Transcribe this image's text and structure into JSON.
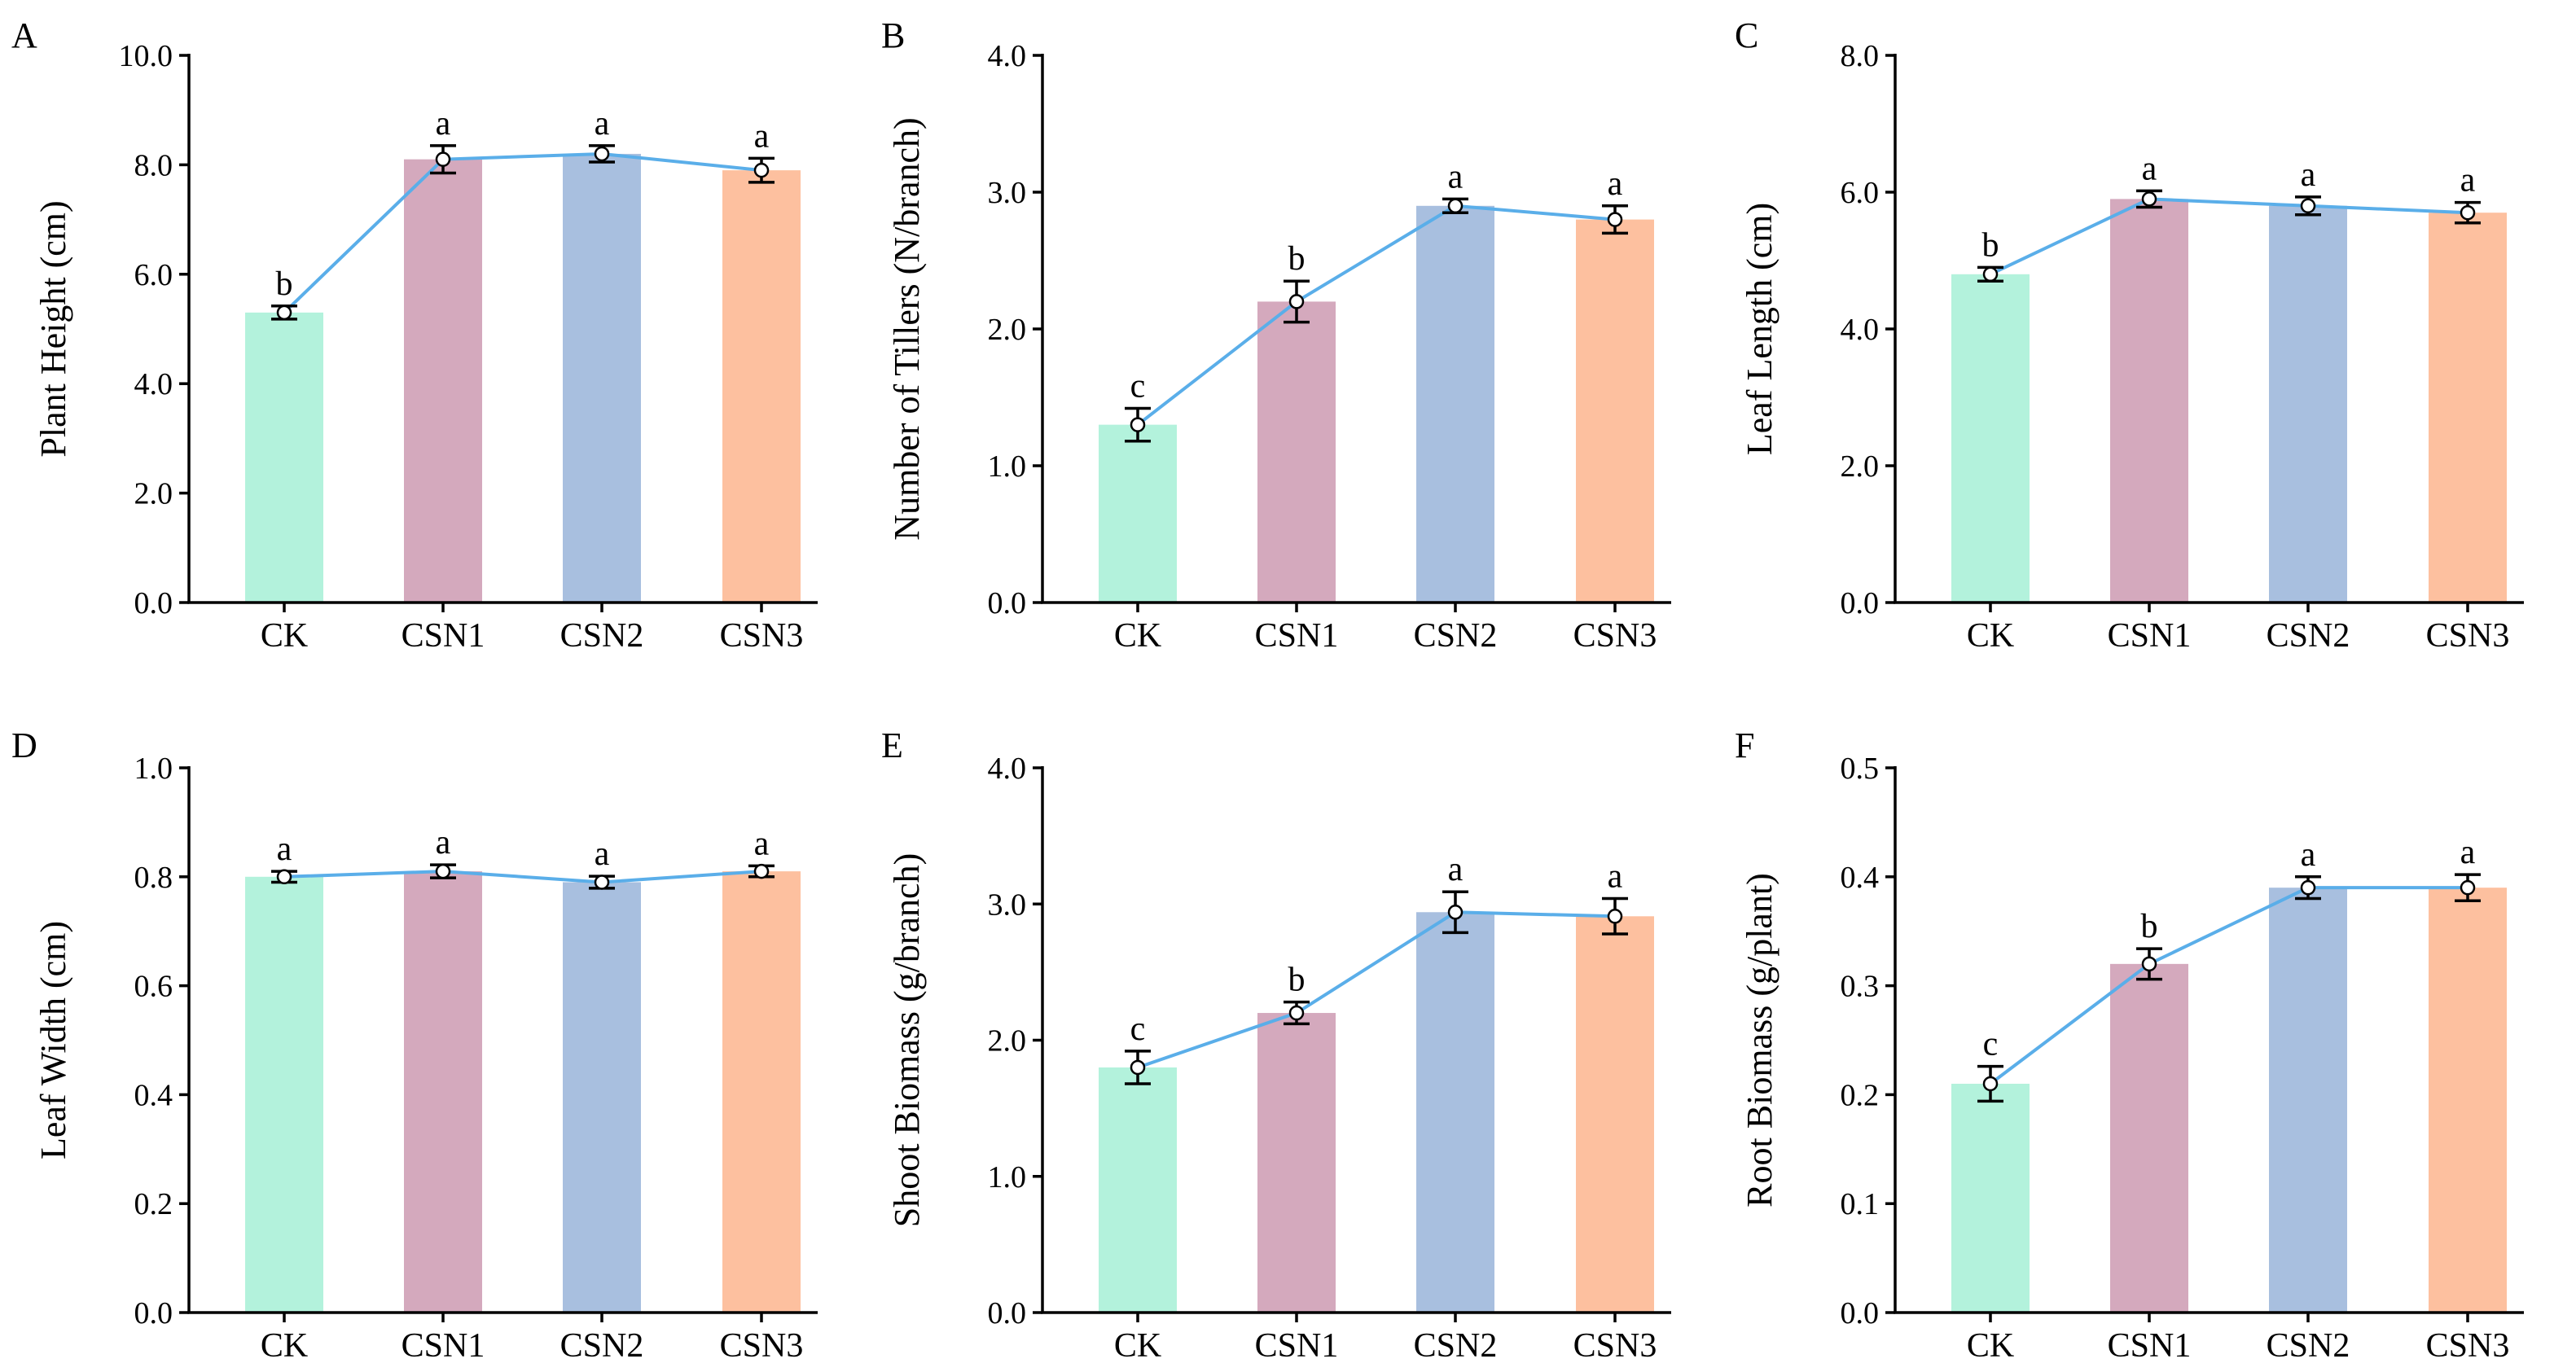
{
  "categories": [
    "CK",
    "CSN1",
    "CSN2",
    "CSN3"
  ],
  "colors": {
    "bars": [
      "#b3f2dc",
      "#d4a9bd",
      "#a8bfdf",
      "#fdc09f"
    ],
    "line": "#5aaee9",
    "axis": "#000000"
  },
  "chart_data": [
    {
      "type": "bar",
      "panel": "A",
      "title": "",
      "xlabel": "",
      "ylabel": "Plant Height (cm)",
      "ylim": [
        0,
        10
      ],
      "ticks": [
        0,
        2,
        4,
        6,
        8,
        10
      ],
      "tick_labels": [
        "0.0",
        "2.0",
        "4.0",
        "6.0",
        "8.0",
        "10.0"
      ],
      "categories": [
        "CK",
        "CSN1",
        "CSN2",
        "CSN3"
      ],
      "values": [
        5.3,
        8.1,
        8.2,
        7.9
      ],
      "errors": [
        0.12,
        0.25,
        0.15,
        0.22
      ],
      "significance": [
        "b",
        "a",
        "a",
        "a"
      ]
    },
    {
      "type": "bar",
      "panel": "B",
      "title": "",
      "xlabel": "",
      "ylabel": "Number of Tillers (N/branch)",
      "ylim": [
        0,
        4
      ],
      "ticks": [
        0,
        1,
        2,
        3,
        4
      ],
      "tick_labels": [
        "0.0",
        "1.0",
        "2.0",
        "3.0",
        "4.0"
      ],
      "categories": [
        "CK",
        "CSN1",
        "CSN2",
        "CSN3"
      ],
      "values": [
        1.3,
        2.2,
        2.9,
        2.8
      ],
      "errors": [
        0.12,
        0.15,
        0.05,
        0.1
      ],
      "significance": [
        "c",
        "b",
        "a",
        "a"
      ]
    },
    {
      "type": "bar",
      "panel": "C",
      "title": "",
      "xlabel": "",
      "ylabel": "Leaf Length (cm)",
      "ylim": [
        0,
        8
      ],
      "ticks": [
        0,
        2,
        4,
        6,
        8
      ],
      "tick_labels": [
        "0.0",
        "2.0",
        "4.0",
        "6.0",
        "8.0"
      ],
      "categories": [
        "CK",
        "CSN1",
        "CSN2",
        "CSN3"
      ],
      "values": [
        4.8,
        5.9,
        5.8,
        5.7
      ],
      "errors": [
        0.1,
        0.12,
        0.13,
        0.15
      ],
      "significance": [
        "b",
        "a",
        "a",
        "a"
      ]
    },
    {
      "type": "bar",
      "panel": "D",
      "title": "",
      "xlabel": "",
      "ylabel": "Leaf Width (cm)",
      "ylim": [
        0,
        1
      ],
      "ticks": [
        0,
        0.2,
        0.4,
        0.6,
        0.8,
        1.0
      ],
      "tick_labels": [
        "0.0",
        "0.2",
        "0.4",
        "0.6",
        "0.8",
        "1.0"
      ],
      "categories": [
        "CK",
        "CSN1",
        "CSN2",
        "CSN3"
      ],
      "values": [
        0.8,
        0.81,
        0.79,
        0.81
      ],
      "errors": [
        0.01,
        0.012,
        0.011,
        0.01
      ],
      "significance": [
        "a",
        "a",
        "a",
        "a"
      ]
    },
    {
      "type": "bar",
      "panel": "E",
      "title": "",
      "xlabel": "",
      "ylabel": "Shoot Biomass (g/branch)",
      "ylim": [
        0,
        4
      ],
      "ticks": [
        0,
        1,
        2,
        3,
        4
      ],
      "tick_labels": [
        "0.0",
        "1.0",
        "2.0",
        "3.0",
        "4.0"
      ],
      "categories": [
        "CK",
        "CSN1",
        "CSN2",
        "CSN3"
      ],
      "values": [
        1.8,
        2.2,
        2.94,
        2.91
      ],
      "errors": [
        0.12,
        0.08,
        0.15,
        0.13
      ],
      "significance": [
        "c",
        "b",
        "a",
        "a"
      ]
    },
    {
      "type": "bar",
      "panel": "F",
      "title": "",
      "xlabel": "",
      "ylabel": "Root Biomass (g/plant)",
      "ylim": [
        0,
        0.5
      ],
      "ticks": [
        0,
        0.1,
        0.2,
        0.3,
        0.4,
        0.5
      ],
      "tick_labels": [
        "0.0",
        "0.1",
        "0.2",
        "0.3",
        "0.4",
        "0.5"
      ],
      "categories": [
        "CK",
        "CSN1",
        "CSN2",
        "CSN3"
      ],
      "values": [
        0.21,
        0.32,
        0.39,
        0.39
      ],
      "errors": [
        0.016,
        0.014,
        0.01,
        0.012
      ],
      "significance": [
        "c",
        "b",
        "a",
        "a"
      ]
    }
  ]
}
